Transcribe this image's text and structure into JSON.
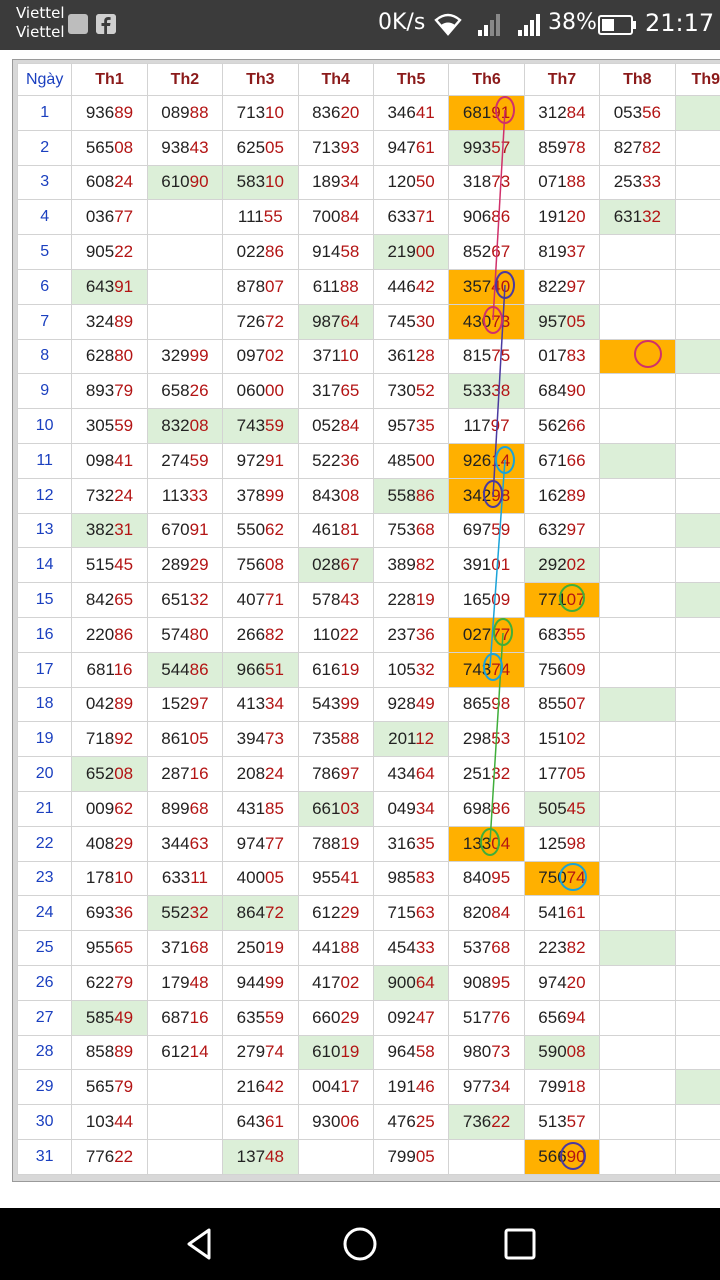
{
  "status_bar": {
    "carrier_line1": "Viettel",
    "carrier_line2": "Viettel",
    "network_speed": "0K/s",
    "battery": "38%",
    "time": "21:17"
  },
  "table": {
    "headers": [
      "Ngày",
      "Th1",
      "Th2",
      "Th3",
      "Th4",
      "Th5",
      "Th6",
      "Th7",
      "Th8",
      "Th9"
    ],
    "rows": [
      {
        "day": "1",
        "cells": [
          "93689",
          "08988",
          "71310",
          "83620",
          "34641",
          "68191",
          "31284",
          "05356",
          ""
        ],
        "hl": {
          "5": "o",
          "8": "g"
        }
      },
      {
        "day": "2",
        "cells": [
          "56508",
          "93843",
          "62505",
          "71393",
          "94761",
          "99357",
          "85978",
          "82782",
          ""
        ],
        "hl": {
          "5": "g"
        }
      },
      {
        "day": "3",
        "cells": [
          "60824",
          "61090",
          "58310",
          "18934",
          "12050",
          "31873",
          "07188",
          "25333",
          ""
        ],
        "hl": {
          "1": "g",
          "2": "g"
        }
      },
      {
        "day": "4",
        "cells": [
          "03677",
          "",
          "11155",
          "70084",
          "63371",
          "90686",
          "19120",
          "63132",
          ""
        ],
        "hl": {
          "7": "g"
        }
      },
      {
        "day": "5",
        "cells": [
          "90522",
          "",
          "02286",
          "91458",
          "21900",
          "85267",
          "81937",
          "",
          ""
        ],
        "hl": {
          "4": "g"
        }
      },
      {
        "day": "6",
        "cells": [
          "64391",
          "",
          "87807",
          "61188",
          "44642",
          "35740",
          "82297",
          "",
          ""
        ],
        "hl": {
          "0": "g",
          "5": "o"
        }
      },
      {
        "day": "7",
        "cells": [
          "32489",
          "",
          "72672",
          "98764",
          "74530",
          "43073",
          "95705",
          "",
          ""
        ],
        "hl": {
          "3": "g",
          "5": "o",
          "6": "g"
        }
      },
      {
        "day": "8",
        "cells": [
          "62880",
          "32999",
          "09702",
          "37110",
          "36128",
          "81575",
          "01783",
          "",
          ""
        ],
        "hl": {
          "7": "o",
          "8": "g"
        }
      },
      {
        "day": "9",
        "cells": [
          "89379",
          "65826",
          "06000",
          "31765",
          "73052",
          "53338",
          "68490",
          "",
          ""
        ],
        "hl": {
          "5": "g"
        }
      },
      {
        "day": "10",
        "cells": [
          "30559",
          "83208",
          "74359",
          "05284",
          "95735",
          "11797",
          "56266",
          "",
          ""
        ],
        "hl": {
          "1": "g",
          "2": "g"
        }
      },
      {
        "day": "11",
        "cells": [
          "09841",
          "27459",
          "97291",
          "52236",
          "48500",
          "92614",
          "67166",
          "",
          ""
        ],
        "hl": {
          "5": "o",
          "7": "g"
        }
      },
      {
        "day": "12",
        "cells": [
          "73224",
          "11333",
          "37899",
          "84308",
          "55886",
          "34298",
          "16289",
          "",
          ""
        ],
        "hl": {
          "4": "g",
          "5": "o"
        }
      },
      {
        "day": "13",
        "cells": [
          "38231",
          "67091",
          "55062",
          "46181",
          "75368",
          "69759",
          "63297",
          "",
          ""
        ],
        "hl": {
          "0": "g",
          "8": "g"
        }
      },
      {
        "day": "14",
        "cells": [
          "51545",
          "28929",
          "75608",
          "02867",
          "38982",
          "39101",
          "29202",
          "",
          ""
        ],
        "hl": {
          "3": "g",
          "6": "g"
        }
      },
      {
        "day": "15",
        "cells": [
          "84265",
          "65132",
          "40771",
          "57843",
          "22819",
          "16509",
          "77107",
          "",
          ""
        ],
        "hl": {
          "6": "o",
          "8": "g"
        }
      },
      {
        "day": "16",
        "cells": [
          "22086",
          "57480",
          "26682",
          "11022",
          "23736",
          "02777",
          "68355",
          "",
          ""
        ],
        "hl": {
          "5": "o"
        }
      },
      {
        "day": "17",
        "cells": [
          "68116",
          "54486",
          "96651",
          "61619",
          "10532",
          "74374",
          "75609",
          "",
          ""
        ],
        "hl": {
          "1": "g",
          "2": "g",
          "5": "o"
        }
      },
      {
        "day": "18",
        "cells": [
          "04289",
          "15297",
          "41334",
          "54399",
          "92849",
          "86598",
          "85507",
          "",
          ""
        ],
        "hl": {
          "7": "g"
        }
      },
      {
        "day": "19",
        "cells": [
          "71892",
          "86105",
          "39473",
          "73588",
          "20112",
          "29853",
          "15102",
          "",
          ""
        ],
        "hl": {
          "4": "g"
        }
      },
      {
        "day": "20",
        "cells": [
          "65208",
          "28716",
          "20824",
          "78697",
          "43464",
          "25132",
          "17705",
          "",
          ""
        ],
        "hl": {
          "0": "g"
        }
      },
      {
        "day": "21",
        "cells": [
          "00962",
          "89968",
          "43185",
          "66103",
          "04934",
          "69886",
          "50545",
          "",
          ""
        ],
        "hl": {
          "3": "g",
          "6": "g"
        }
      },
      {
        "day": "22",
        "cells": [
          "40829",
          "34463",
          "97477",
          "78819",
          "31635",
          "13304",
          "12598",
          "",
          ""
        ],
        "hl": {
          "5": "o"
        }
      },
      {
        "day": "23",
        "cells": [
          "17810",
          "63311",
          "40005",
          "95541",
          "98583",
          "84095",
          "75074",
          "",
          ""
        ],
        "hl": {
          "6": "o"
        }
      },
      {
        "day": "24",
        "cells": [
          "69336",
          "55232",
          "86472",
          "61229",
          "71563",
          "82084",
          "54161",
          "",
          ""
        ],
        "hl": {
          "1": "g",
          "2": "g"
        }
      },
      {
        "day": "25",
        "cells": [
          "95565",
          "37168",
          "25019",
          "44188",
          "45433",
          "53768",
          "22382",
          "",
          ""
        ],
        "hl": {
          "7": "g"
        }
      },
      {
        "day": "26",
        "cells": [
          "62279",
          "17948",
          "94499",
          "41702",
          "90064",
          "90895",
          "97420",
          "",
          ""
        ],
        "hl": {
          "4": "g"
        }
      },
      {
        "day": "27",
        "cells": [
          "58549",
          "68716",
          "63559",
          "66029",
          "09247",
          "51776",
          "65694",
          "",
          ""
        ],
        "hl": {
          "0": "g"
        }
      },
      {
        "day": "28",
        "cells": [
          "85889",
          "61214",
          "27974",
          "61019",
          "96458",
          "98073",
          "59008",
          "",
          ""
        ],
        "hl": {
          "3": "g",
          "6": "g"
        }
      },
      {
        "day": "29",
        "cells": [
          "56579",
          "",
          "21642",
          "00417",
          "19146",
          "97734",
          "79918",
          "",
          ""
        ],
        "hl": {
          "8": "g"
        }
      },
      {
        "day": "30",
        "cells": [
          "10344",
          "",
          "64361",
          "93006",
          "47625",
          "73622",
          "51357",
          "",
          ""
        ],
        "hl": {
          "5": "g"
        }
      },
      {
        "day": "31",
        "cells": [
          "77622",
          "",
          "13748",
          "",
          "79905",
          "",
          "56690",
          "",
          ""
        ],
        "hl": {
          "2": "g",
          "6": "o"
        }
      }
    ]
  },
  "colors": {
    "highlight_green": "#dcefd8",
    "highlight_orange": "#ffb000",
    "digit_prefix": "#222222",
    "digit_suffix": "#b31414",
    "header_text": "#8b1a1a",
    "day_text": "#1a3fbf"
  },
  "nav_bar": {
    "icons": [
      "back-icon",
      "home-icon",
      "recents-icon"
    ]
  }
}
